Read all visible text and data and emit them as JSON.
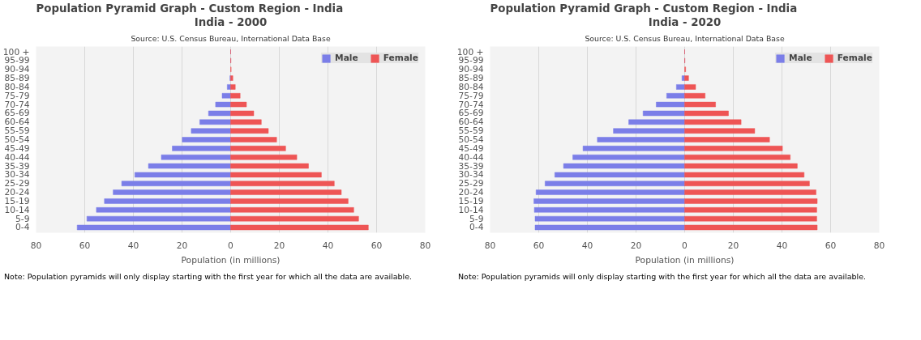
{
  "chart_data": [
    {
      "type": "bar",
      "orientation": "horizontal",
      "title": "Population Pyramid Graph - Custom Region - India",
      "subtitle": "India - 2000",
      "xlabel": "Population (in millions)",
      "annotations": [
        "Source: U.S. Census Bureau, International Data Base",
        "Note: Population pyramids will only display starting with the first year for which all the data are available."
      ],
      "categories": [
        "100 +",
        "95-99",
        "90-94",
        "85-89",
        "80-84",
        "75-79",
        "70-74",
        "65-69",
        "60-64",
        "55-59",
        "50-54",
        "45-49",
        "40-44",
        "35-39",
        "30-34",
        "25-29",
        "20-24",
        "15-19",
        "10-14",
        "5-9",
        "0-4"
      ],
      "series": [
        {
          "name": "Male",
          "color": "#7b7ee8",
          "values": [
            0,
            0,
            null,
            -0.3,
            -1.4,
            -3.5,
            -6.2,
            -9.1,
            -12.7,
            -16.2,
            -19.9,
            -24.0,
            -28.5,
            -33.8,
            -39.4,
            -44.8,
            -48.3,
            -51.9,
            -55.2,
            -59.1,
            -63.1
          ]
        },
        {
          "name": "Female",
          "color": "#ee5555",
          "values": [
            0,
            0.1,
            0.2,
            0.9,
            1.9,
            3.9,
            6.5,
            9.5,
            12.6,
            15.5,
            18.9,
            22.6,
            27.2,
            32.0,
            37.3,
            42.6,
            45.5,
            48.3,
            50.6,
            52.6,
            56.6
          ]
        }
      ],
      "xlim": [
        -80,
        80
      ],
      "xticks": [
        {
          "value": -80,
          "label": "80"
        },
        {
          "value": -60,
          "label": "60"
        },
        {
          "value": -40,
          "label": "40"
        },
        {
          "value": -20,
          "label": "20"
        },
        0,
        20,
        40,
        60,
        80
      ],
      "grid": "x",
      "legend": "top right",
      "stacked": true
    },
    {
      "type": "bar",
      "orientation": "horizontal",
      "title": "Population Pyramid Graph - Custom Region - India",
      "subtitle": "India - 2020",
      "xlabel": "Population (in millions)",
      "annotations": [
        "Source: U.S. Census Bureau, International Data Base",
        "Note: Population pyramids will only display starting with the first year for which all the data are available."
      ],
      "categories": [
        "100 +",
        "95-99",
        "90-94",
        "85-89",
        "80-84",
        "75-79",
        "70-74",
        "65-69",
        "60-64",
        "55-59",
        "50-54",
        "45-49",
        "40-44",
        "35-39",
        "30-34",
        "25-29",
        "20-24",
        "15-19",
        "10-14",
        "5-9",
        "0-4"
      ],
      "series": [
        {
          "name": "Male",
          "color": "#7b7ee8",
          "values": [
            0,
            0,
            null,
            -1.1,
            -3.4,
            -7.4,
            -11.7,
            -17.1,
            -23.0,
            -29.3,
            -35.9,
            -41.8,
            -46.0,
            -49.8,
            -53.4,
            -57.4,
            -61.1,
            -62.0,
            -61.8,
            -61.5,
            -61.5
          ]
        },
        {
          "name": "Female",
          "color": "#ee5555",
          "values": [
            0,
            0.1,
            0.4,
            1.6,
            4.5,
            8.4,
            12.7,
            18.0,
            23.2,
            28.8,
            34.9,
            40.2,
            43.4,
            46.3,
            49.1,
            51.3,
            54.0,
            54.5,
            54.3,
            54.3,
            54.5
          ]
        }
      ],
      "xlim": [
        -80,
        80
      ],
      "xticks": [
        {
          "value": -80,
          "label": "80"
        },
        {
          "value": -60,
          "label": "60"
        },
        {
          "value": -40,
          "label": "40"
        },
        {
          "value": -20,
          "label": "20"
        },
        0,
        20,
        40,
        60,
        80
      ],
      "grid": "x",
      "legend": "top right",
      "stacked": true
    }
  ]
}
